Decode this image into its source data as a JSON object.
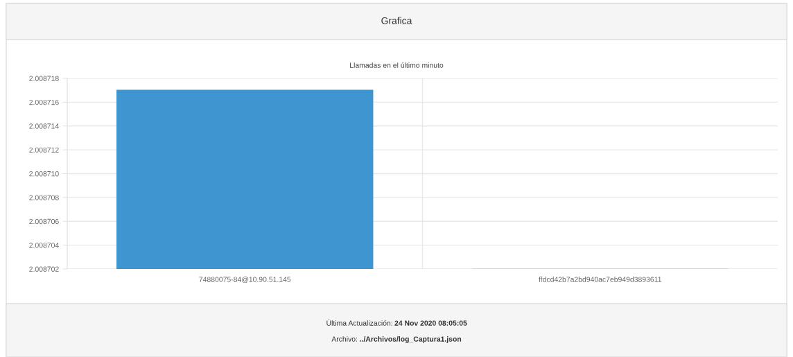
{
  "chart_data": {
    "type": "bar",
    "title": "Grafica",
    "subtitle": "Llamadas en el último minuto",
    "categories": [
      "74880075-84@10.90.51.145",
      "ffdcd42b7a2bd940ac7eb949d3893611"
    ],
    "values": [
      2.008717,
      2.008702
    ],
    "colors": [
      "#3f95cf",
      "#d8c8e0"
    ],
    "ylim": [
      2.008702,
      2.008718
    ],
    "yticks": [
      2.008702,
      2.008704,
      2.008706,
      2.008708,
      {
        "value": 2.00871,
        "label": "2.008710"
      },
      2.008712,
      2.008714,
      2.008716,
      2.008718
    ],
    "grid": true,
    "annotations": [
      "Última Actualización: 24 Nov 2020 08:05:05",
      "Archivo: ../Archivos/log_Captura1.json"
    ]
  }
}
